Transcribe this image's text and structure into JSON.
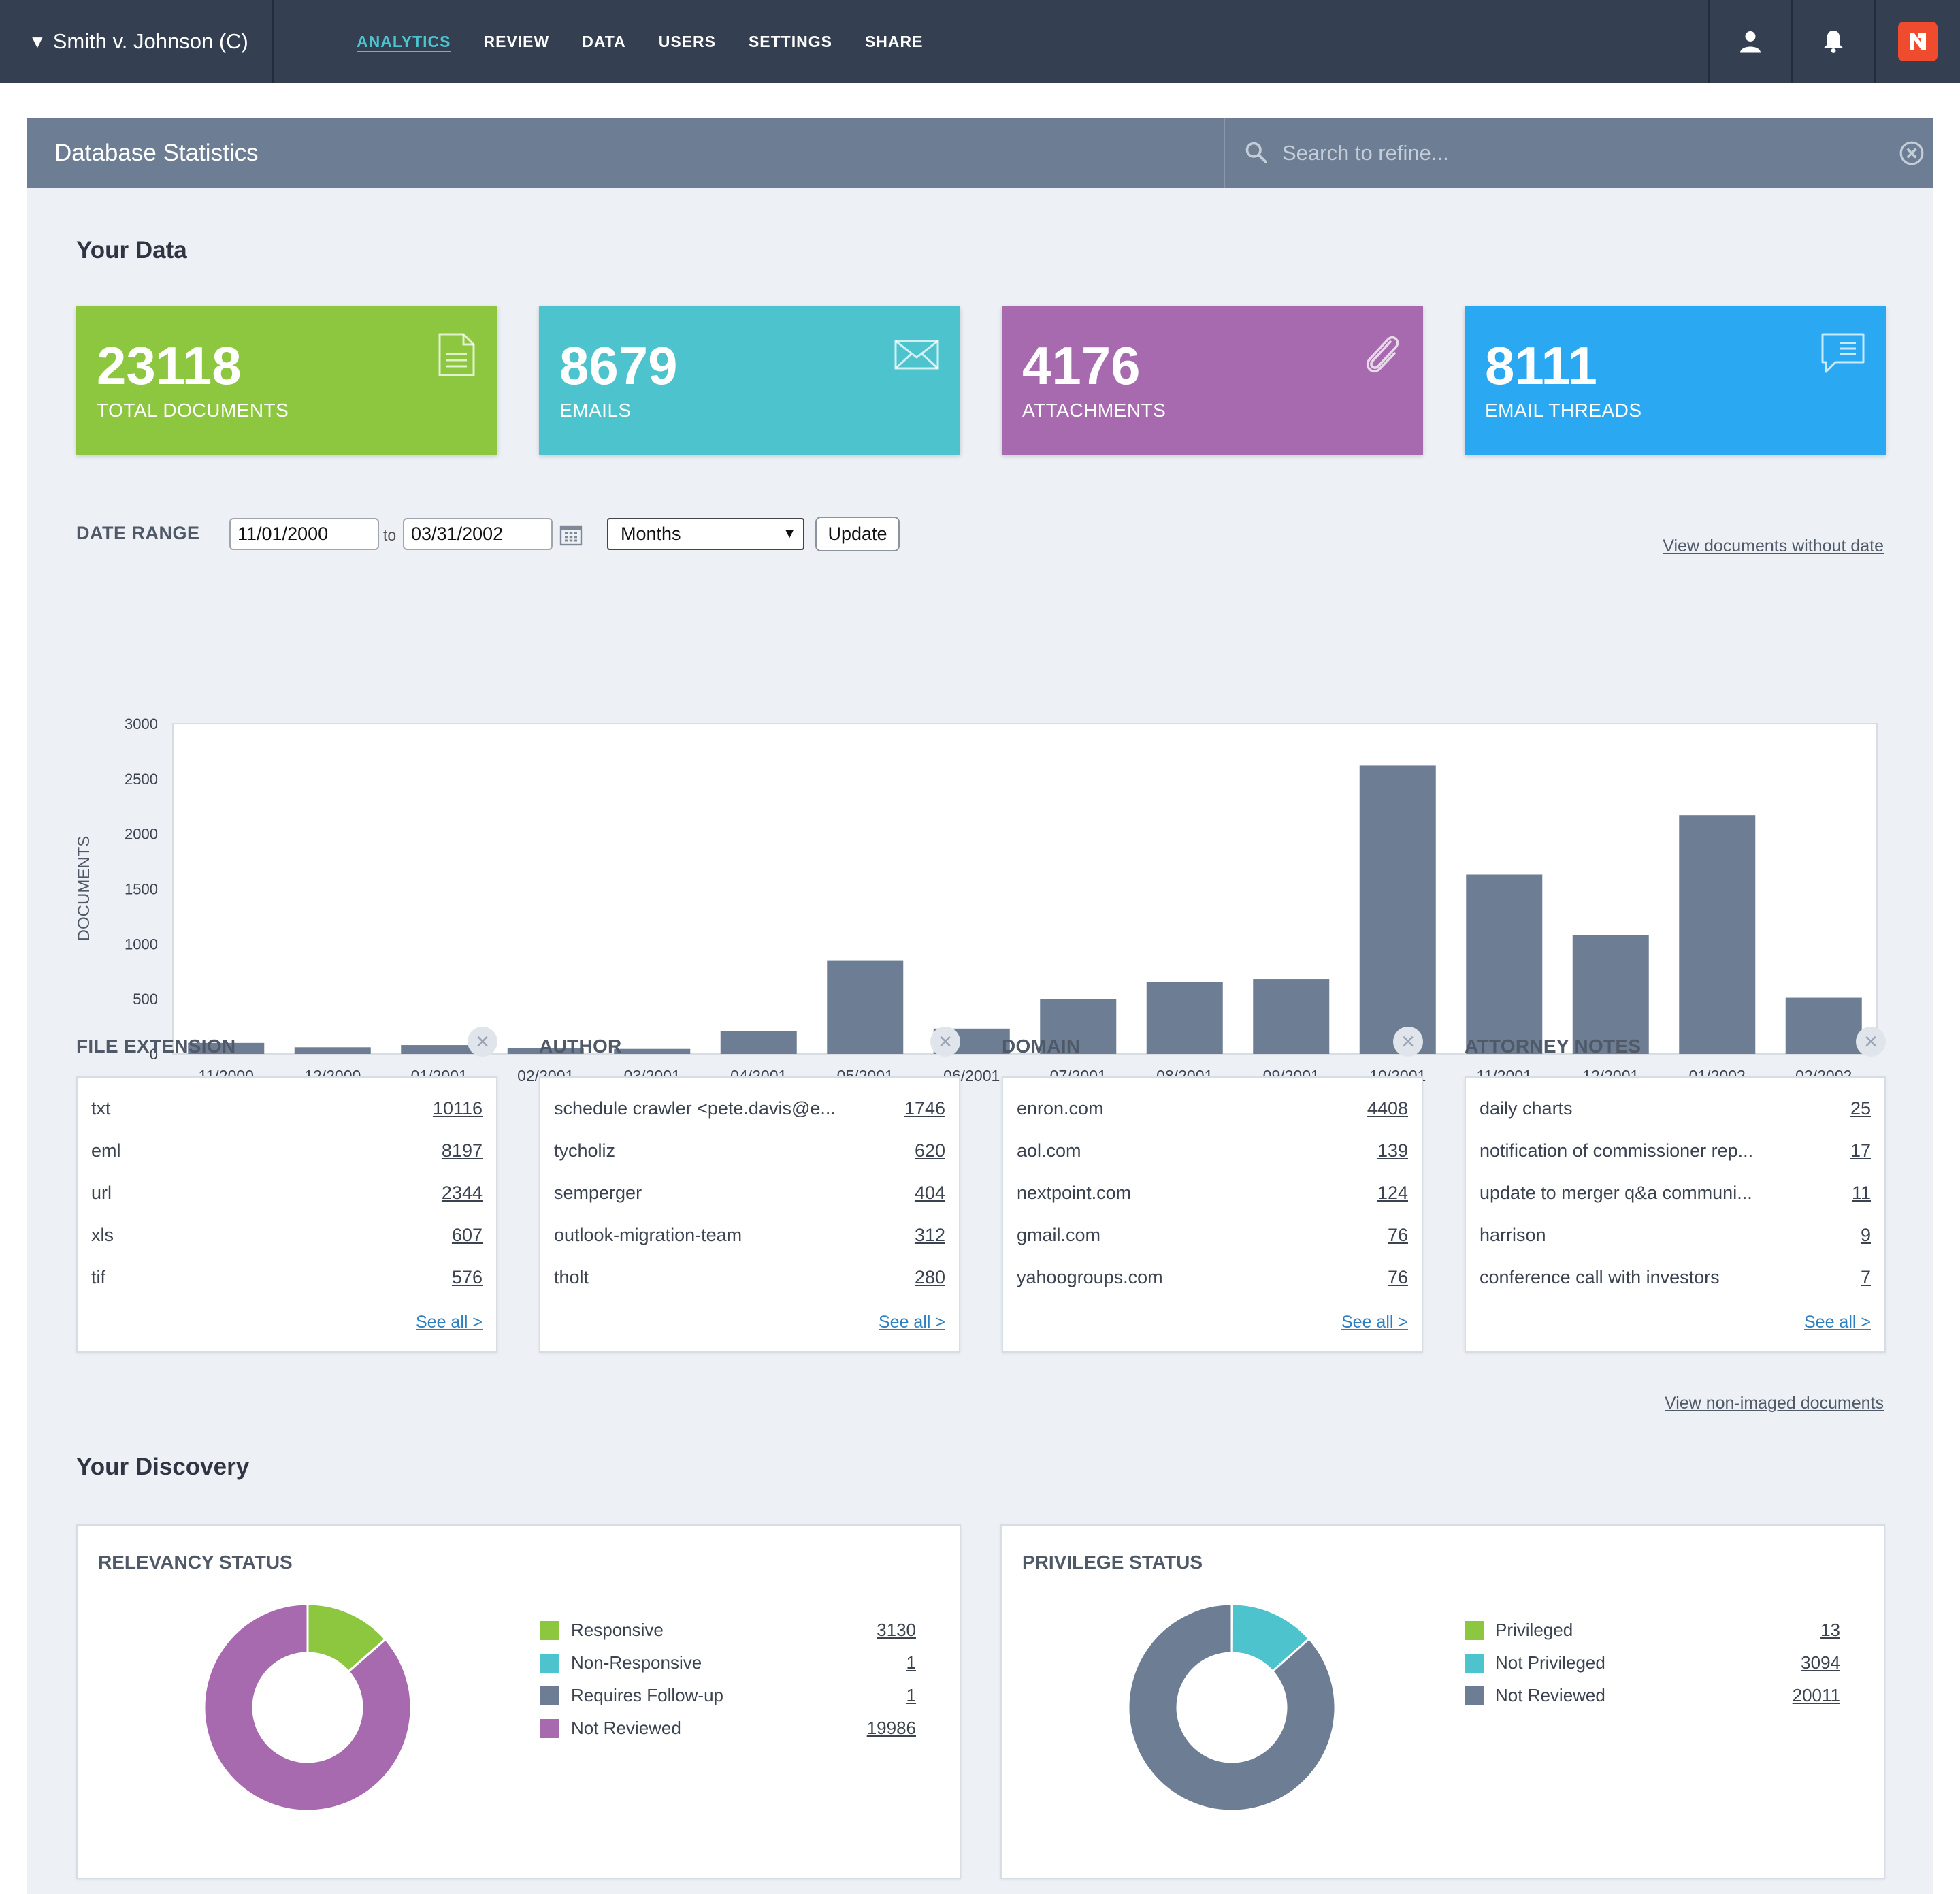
{
  "nav": {
    "case_name": "Smith v. Johnson (C)",
    "links": [
      "ANALYTICS",
      "REVIEW",
      "DATA",
      "USERS",
      "SETTINGS",
      "SHARE"
    ],
    "active": "ANALYTICS"
  },
  "header": {
    "title": "Database Statistics",
    "search_placeholder": "Search to refine..."
  },
  "your_data": {
    "heading": "Your Data",
    "tiles": [
      {
        "value": "23118",
        "label": "TOTAL DOCUMENTS",
        "color": "#8dc63f",
        "icon": "document-icon"
      },
      {
        "value": "8679",
        "label": "EMAILS",
        "color": "#4cc3cd",
        "icon": "envelope-icon"
      },
      {
        "value": "4176",
        "label": "ATTACHMENTS",
        "color": "#a86aaf",
        "icon": "paperclip-icon"
      },
      {
        "value": "8111",
        "label": "EMAIL THREADS",
        "color": "#2aa8f2",
        "icon": "chat-icon"
      }
    ]
  },
  "date_range": {
    "label": "DATE RANGE",
    "from": "11/01/2000",
    "to_word": "to",
    "to": "03/31/2002",
    "interval": "Months",
    "update_label": "Update",
    "no_date_link": "View documents without date"
  },
  "chart_data": {
    "type": "bar",
    "ylabel": "DOCUMENTS",
    "ylim": [
      0,
      3000
    ],
    "yticks": [
      0,
      500,
      1000,
      1500,
      2000,
      2500,
      3000
    ],
    "categories": [
      "11/2000",
      "12/2000",
      "01/2001",
      "02/2001",
      "03/2001",
      "04/2001",
      "05/2001",
      "06/2001",
      "07/2001",
      "08/2001",
      "09/2001",
      "10/2001",
      "11/2001",
      "12/2001",
      "01/2002",
      "02/2002"
    ],
    "values": [
      100,
      60,
      80,
      55,
      45,
      210,
      850,
      230,
      500,
      650,
      680,
      2620,
      1630,
      1080,
      2170,
      510
    ],
    "bar_color": "#6d7d94"
  },
  "facets": [
    {
      "title": "FILE EXTENSION",
      "rows": [
        [
          "txt",
          "10116"
        ],
        [
          "eml",
          "8197"
        ],
        [
          "url",
          "2344"
        ],
        [
          "xls",
          "607"
        ],
        [
          "tif",
          "576"
        ]
      ],
      "see_all": "See all >"
    },
    {
      "title": "AUTHOR",
      "rows": [
        [
          "schedule crawler <pete.davis@e...",
          "1746"
        ],
        [
          "tycholiz",
          "620"
        ],
        [
          "semperger",
          "404"
        ],
        [
          "outlook-migration-team",
          "312"
        ],
        [
          "tholt",
          "280"
        ]
      ],
      "see_all": "See all >"
    },
    {
      "title": "DOMAIN",
      "rows": [
        [
          "enron.com",
          "4408"
        ],
        [
          "aol.com",
          "139"
        ],
        [
          "nextpoint.com",
          "124"
        ],
        [
          "gmail.com",
          "76"
        ],
        [
          "yahoogroups.com",
          "76"
        ]
      ],
      "see_all": "See all >"
    },
    {
      "title": "ATTORNEY NOTES",
      "rows": [
        [
          "daily charts",
          "25"
        ],
        [
          "notification of commissioner rep...",
          "17"
        ],
        [
          "update to merger q&a communi...",
          "11"
        ],
        [
          "harrison",
          "9"
        ],
        [
          "conference call with investors",
          "7"
        ]
      ],
      "see_all": "See all >"
    }
  ],
  "non_imaged_link": "View non-imaged documents",
  "discovery": {
    "heading": "Your Discovery",
    "relevancy": {
      "title": "RELEVANCY STATUS",
      "items": [
        {
          "label": "Responsive",
          "value": "3130",
          "color": "#8dc63f"
        },
        {
          "label": "Non-Responsive",
          "value": "1",
          "color": "#4cc3cd"
        },
        {
          "label": "Requires Follow-up",
          "value": "1",
          "color": "#6d7d94"
        },
        {
          "label": "Not Reviewed",
          "value": "19986",
          "color": "#a86aaf"
        }
      ]
    },
    "privilege": {
      "title": "PRIVILEGE STATUS",
      "items": [
        {
          "label": "Privileged",
          "value": "13",
          "color": "#8dc63f"
        },
        {
          "label": "Not Privileged",
          "value": "3094",
          "color": "#4cc3cd"
        },
        {
          "label": "Not Reviewed",
          "value": "20011",
          "color": "#6d7d94"
        }
      ]
    }
  }
}
